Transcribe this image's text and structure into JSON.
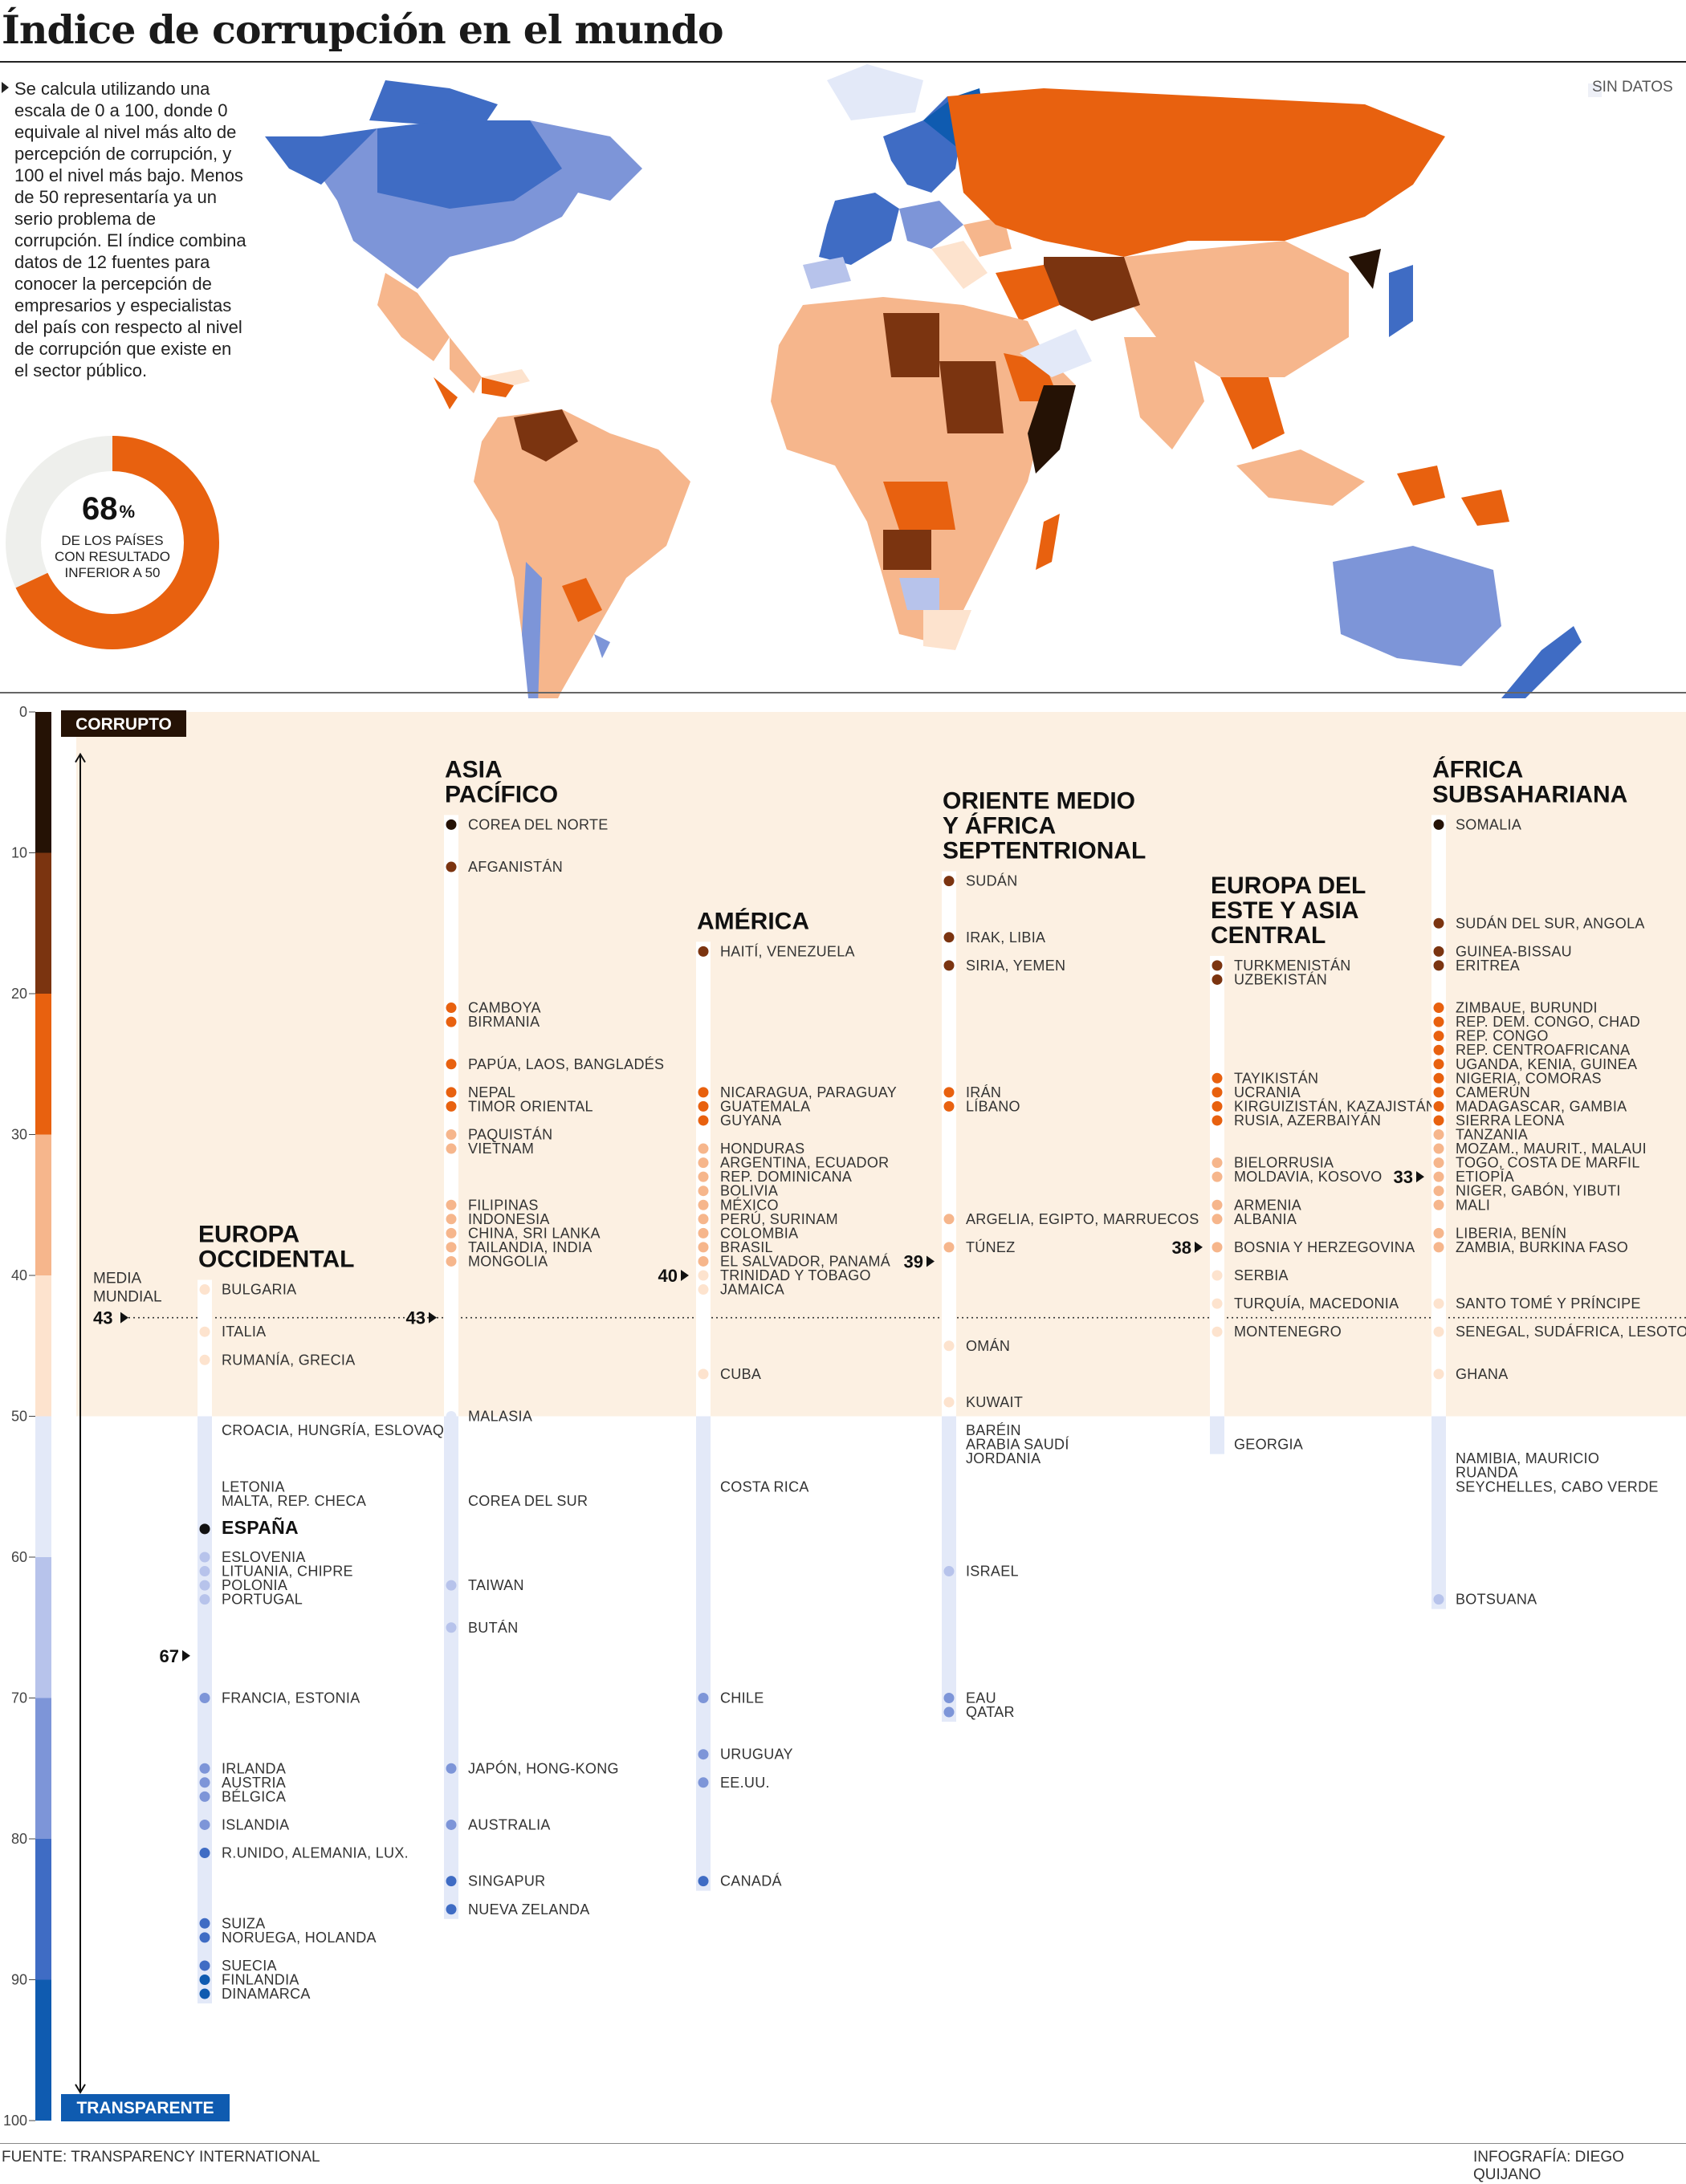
{
  "title": "Índice de corrupción en el mundo",
  "intro": "Se calcula utilizando una escala de 0 a 100, donde 0 equivale al nivel más alto de percepción de corrupción, y 100 el nivel más bajo. Menos de 50 representaría ya un serio problema de corrupción. El índice combina datos de 12 fuentes para conocer la percepción de empresarios y especialistas del país con respecto al nivel de corrupción que existe en el sector público.",
  "legend": {
    "no_data": "SIN DATOS"
  },
  "donut": {
    "value": "68",
    "unit": "%",
    "line1": "DE LOS PAÍSES",
    "line2": "CON RESULTADO",
    "line3": "INFERIOR A 50",
    "fraction": 0.68
  },
  "colors": {
    "scale": [
      "#251205",
      "#7b3410",
      "#e8610f",
      "#f6b68c",
      "#fde3ce",
      "#e3e9f8",
      "#b7c3eb",
      "#7d95d8",
      "#3f6cc4",
      "#0f5bb0"
    ],
    "corrupt_bg": "#fcf0e2",
    "accent": "#e8610f"
  },
  "chart_data": {
    "type": "scatter",
    "axis": {
      "min": 0,
      "max": 100,
      "ticks": [
        0,
        10,
        20,
        30,
        40,
        50,
        60,
        70,
        80,
        90,
        100
      ],
      "top_label": "CORRUPTO",
      "bottom_label": "TRANSPARENTE"
    },
    "world_average": {
      "label_line1": "MEDIA",
      "label_line2": "MUNDIAL",
      "value": 43
    },
    "regions": [
      {
        "name_lines": [
          "EUROPA",
          "OCCIDENTAL"
        ],
        "average": 67,
        "points": [
          {
            "score": 41,
            "label": "BULGARIA"
          },
          {
            "score": 44,
            "label": "ITALIA"
          },
          {
            "score": 46,
            "label": "RUMANÍA, GRECIA"
          },
          {
            "score": 51,
            "label": "CROACIA, HUNGRÍA, ESLOVAQ."
          },
          {
            "score": 55,
            "label": "LETONIA"
          },
          {
            "score": 56,
            "label": "MALTA, REP. CHECA"
          },
          {
            "score": 58,
            "label": "ESPAÑA",
            "highlight": true
          },
          {
            "score": 60,
            "label": "ESLOVENIA"
          },
          {
            "score": 61,
            "label": "LITUANIA, CHIPRE"
          },
          {
            "score": 62,
            "label": "POLONIA"
          },
          {
            "score": 63,
            "label": "PORTUGAL"
          },
          {
            "score": 70,
            "label": "FRANCIA, ESTONIA"
          },
          {
            "score": 75,
            "label": "IRLANDA"
          },
          {
            "score": 76,
            "label": "AUSTRIA"
          },
          {
            "score": 77,
            "label": "BÉLGICA"
          },
          {
            "score": 79,
            "label": "ISLANDIA"
          },
          {
            "score": 81,
            "label": "R.UNIDO, ALEMANIA, LUX."
          },
          {
            "score": 86,
            "label": "SUIZA"
          },
          {
            "score": 87,
            "label": "NORUEGA, HOLANDA"
          },
          {
            "score": 89,
            "label": "SUECIA"
          },
          {
            "score": 90,
            "label": "FINLANDIA"
          },
          {
            "score": 91,
            "label": "DINAMARCA"
          }
        ]
      },
      {
        "name_lines": [
          "ASIA",
          "PACÍFICO"
        ],
        "average": 43,
        "points": [
          {
            "score": 8,
            "label": "COREA DEL NORTE"
          },
          {
            "score": 11,
            "label": "AFGANISTÁN"
          },
          {
            "score": 21,
            "label": "CAMBOYA"
          },
          {
            "score": 22,
            "label": "BIRMANIA"
          },
          {
            "score": 25,
            "label": "PAPÚA, LAOS, BANGLADÉS"
          },
          {
            "score": 27,
            "label": "NEPAL"
          },
          {
            "score": 28,
            "label": "TIMOR ORIENTAL"
          },
          {
            "score": 30,
            "label": "PAQUISTÁN"
          },
          {
            "score": 31,
            "label": "VIETNAM"
          },
          {
            "score": 35,
            "label": "FILIPINAS"
          },
          {
            "score": 36,
            "label": "INDONESIA"
          },
          {
            "score": 37,
            "label": "CHINA, SRI LANKA"
          },
          {
            "score": 38,
            "label": "TAILANDIA, INDIA"
          },
          {
            "score": 39,
            "label": "MONGOLIA"
          },
          {
            "score": 50,
            "label": "MALASIA"
          },
          {
            "score": 56,
            "label": "COREA DEL SUR"
          },
          {
            "score": 62,
            "label": "TAIWAN"
          },
          {
            "score": 65,
            "label": "BUTÁN"
          },
          {
            "score": 75,
            "label": "JAPÓN, HONG-KONG"
          },
          {
            "score": 79,
            "label": "AUSTRALIA"
          },
          {
            "score": 83,
            "label": "SINGAPUR"
          },
          {
            "score": 85,
            "label": "NUEVA ZELANDA"
          }
        ]
      },
      {
        "name_lines": [
          "AMÉRICA"
        ],
        "average": 40,
        "points": [
          {
            "score": 17,
            "label": "HAITÍ, VENEZUELA"
          },
          {
            "score": 27,
            "label": "NICARAGUA, PARAGUAY"
          },
          {
            "score": 28,
            "label": "GUATEMALA"
          },
          {
            "score": 29,
            "label": "GUYANA"
          },
          {
            "score": 31,
            "label": "HONDURAS"
          },
          {
            "score": 32,
            "label": "ARGENTINA, ECUADOR"
          },
          {
            "score": 33,
            "label": "REP. DOMINICANA"
          },
          {
            "score": 34,
            "label": "BOLIVIA"
          },
          {
            "score": 35,
            "label": "MÉXICO"
          },
          {
            "score": 36,
            "label": "PERÚ, SURINAM"
          },
          {
            "score": 37,
            "label": "COLOMBIA"
          },
          {
            "score": 38,
            "label": "BRASIL"
          },
          {
            "score": 39,
            "label": "EL SALVADOR, PANAMÁ"
          },
          {
            "score": 40,
            "label": "TRINIDAD Y TOBAGO"
          },
          {
            "score": 41,
            "label": "JAMAICA"
          },
          {
            "score": 47,
            "label": "CUBA"
          },
          {
            "score": 55,
            "label": "COSTA RICA"
          },
          {
            "score": 70,
            "label": "CHILE"
          },
          {
            "score": 74,
            "label": "URUGUAY"
          },
          {
            "score": 76,
            "label": "EE.UU."
          },
          {
            "score": 83,
            "label": "CANADÁ"
          }
        ]
      },
      {
        "name_lines": [
          "ORIENTE MEDIO",
          "Y ÁFRICA",
          "SEPTENTRIONAL"
        ],
        "average": 39,
        "points": [
          {
            "score": 12,
            "label": "SUDÁN"
          },
          {
            "score": 16,
            "label": "IRAK, LIBIA"
          },
          {
            "score": 18,
            "label": "SIRIA, YEMEN"
          },
          {
            "score": 27,
            "label": "IRÁN"
          },
          {
            "score": 28,
            "label": "LÍBANO"
          },
          {
            "score": 36,
            "label": "ARGELIA, EGIPTO, MARRUECOS"
          },
          {
            "score": 38,
            "label": "TÚNEZ"
          },
          {
            "score": 45,
            "label": "OMÁN"
          },
          {
            "score": 49,
            "label": "KUWAIT"
          },
          {
            "score": 51,
            "label": "BARÉIN"
          },
          {
            "score": 52,
            "label": "ARABIA SAUDÍ"
          },
          {
            "score": 53,
            "label": "JORDANIA"
          },
          {
            "score": 61,
            "label": "ISRAEL"
          },
          {
            "score": 70,
            "label": "EAU"
          },
          {
            "score": 71,
            "label": "QATAR"
          }
        ]
      },
      {
        "name_lines": [
          "EUROPA DEL",
          "ESTE Y ASIA",
          "CENTRAL"
        ],
        "average": 38,
        "points": [
          {
            "score": 18,
            "label": "TURKMENISTÁN"
          },
          {
            "score": 19,
            "label": "UZBEKISTÁN"
          },
          {
            "score": 26,
            "label": "TAYIKISTÁN"
          },
          {
            "score": 27,
            "label": "UCRANIA"
          },
          {
            "score": 28,
            "label": "KIRGUIZISTÁN, KAZAJISTÁN"
          },
          {
            "score": 29,
            "label": "RUSIA, AZERBAIYÁN"
          },
          {
            "score": 32,
            "label": "BIELORRUSIA"
          },
          {
            "score": 33,
            "label": "MOLDAVIA, KOSOVO"
          },
          {
            "score": 35,
            "label": "ARMENIA"
          },
          {
            "score": 36,
            "label": "ALBANIA"
          },
          {
            "score": 38,
            "label": "BOSNIA Y HERZEGOVINA"
          },
          {
            "score": 40,
            "label": "SERBIA"
          },
          {
            "score": 42,
            "label": "TURQUÍA, MACEDONIA"
          },
          {
            "score": 44,
            "label": "MONTENEGRO"
          },
          {
            "score": 52,
            "label": "GEORGIA"
          }
        ]
      },
      {
        "name_lines": [
          "ÁFRICA",
          "SUBSAHARIANA"
        ],
        "average": 33,
        "points": [
          {
            "score": 8,
            "label": "SOMALIA"
          },
          {
            "score": 15,
            "label": "SUDÁN DEL SUR, ANGOLA"
          },
          {
            "score": 17,
            "label": "GUINEA-BISSAU"
          },
          {
            "score": 18,
            "label": "ERITREA"
          },
          {
            "score": 21,
            "label": "ZIMBAUE, BURUNDI"
          },
          {
            "score": 22,
            "label": "REP. DEM. CONGO, CHAD"
          },
          {
            "score": 23,
            "label": "REP. CONGO"
          },
          {
            "score": 24,
            "label": "REP. CENTROAFRICANA"
          },
          {
            "score": 25,
            "label": "UGANDA, KENIA, GUINEA"
          },
          {
            "score": 26,
            "label": "NIGERIA, COMORAS"
          },
          {
            "score": 27,
            "label": "CAMERÚN"
          },
          {
            "score": 28,
            "label": "MADAGASCAR, GAMBIA"
          },
          {
            "score": 29,
            "label": "SIERRA LEONA"
          },
          {
            "score": 30,
            "label": "TANZANIA"
          },
          {
            "score": 31,
            "label": "MOZAM., MAURIT., MALAUI"
          },
          {
            "score": 32,
            "label": "TOGO, COSTA DE MARFIL"
          },
          {
            "score": 33,
            "label": "ETIOPÍA"
          },
          {
            "score": 34,
            "label": "NIGER, GABÓN, YIBUTI"
          },
          {
            "score": 35,
            "label": "MALI"
          },
          {
            "score": 37,
            "label": "LIBERIA, BENÍN"
          },
          {
            "score": 38,
            "label": "ZAMBIA, BURKINA FASO"
          },
          {
            "score": 42,
            "label": "SANTO TOMÉ Y PRÍNCIPE"
          },
          {
            "score": 44,
            "label": "SENEGAL, SUDÁFRICA, LESOTO"
          },
          {
            "score": 47,
            "label": "GHANA"
          },
          {
            "score": 53,
            "label": "NAMIBIA, MAURICIO"
          },
          {
            "score": 54,
            "label": "RUANDA"
          },
          {
            "score": 55,
            "label": "SEYCHELLES, CABO VERDE"
          },
          {
            "score": 63,
            "label": "BOTSUANA"
          }
        ]
      }
    ]
  },
  "footer": {
    "source": "FUENTE: TRANSPARENCY INTERNATIONAL",
    "credit": "INFOGRAFÍA: DIEGO QUIJANO"
  }
}
